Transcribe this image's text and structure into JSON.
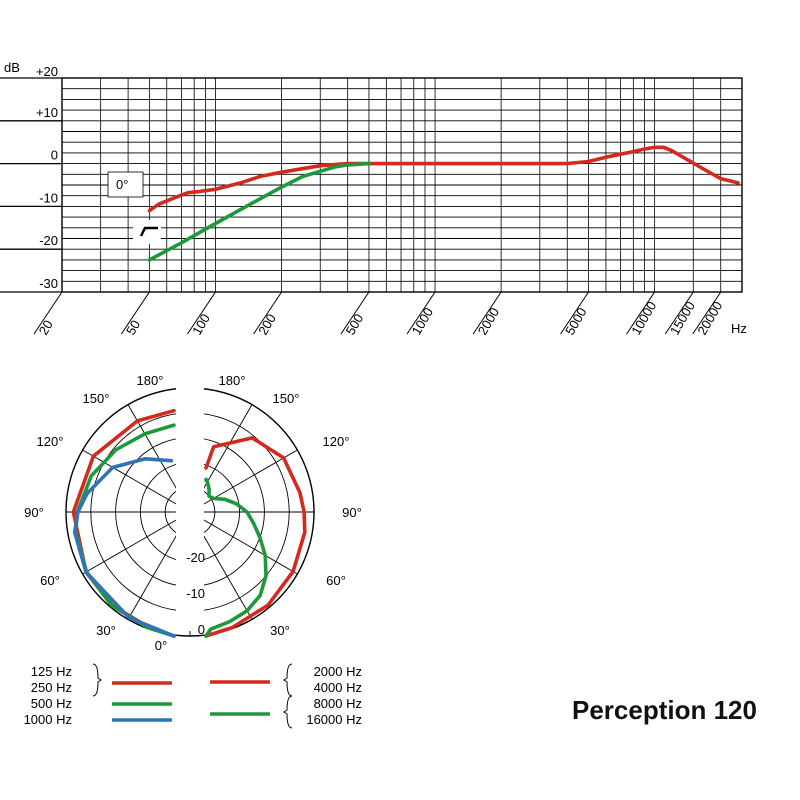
{
  "title": "Perception 120",
  "chart_data": [
    {
      "type": "line",
      "name": "frequency-response",
      "xscale": "log",
      "xlim": [
        20,
        25000
      ],
      "ylim": [
        -30,
        20
      ],
      "y_axis_unit": "dB",
      "x_axis_unit": "Hz",
      "y_ticks": [
        "+20",
        "+10",
        "0",
        "-10",
        "-20",
        "-30"
      ],
      "x_ticks": [
        {
          "value": 20,
          "label": "20"
        },
        {
          "value": 50,
          "label": "50"
        },
        {
          "value": 100,
          "label": "100"
        },
        {
          "value": 200,
          "label": "200"
        },
        {
          "value": 500,
          "label": "500"
        },
        {
          "value": 1000,
          "label": "1000"
        },
        {
          "value": 2000,
          "label": "2000"
        },
        {
          "value": 5000,
          "label": "5000"
        },
        {
          "value": 10000,
          "label": "10000"
        },
        {
          "value": 15000,
          "label": "15000"
        },
        {
          "value": 20000,
          "label": "20000"
        }
      ],
      "annotation": "0°",
      "grid": true,
      "series": [
        {
          "color": "#d42a1e",
          "x": [
            50,
            55,
            65,
            75,
            85,
            100,
            130,
            160,
            200,
            300,
            400,
            500,
            1000,
            2000,
            4000,
            5000,
            6000,
            7000,
            8000,
            9000,
            10000,
            11000,
            12000,
            14000,
            17000,
            20000,
            24000
          ],
          "y": [
            -11,
            -9.5,
            -8,
            -6.8,
            -6.5,
            -6,
            -4.5,
            -3,
            -2,
            -0.5,
            0,
            0,
            0,
            0,
            0,
            0.5,
            1.5,
            2.2,
            2.8,
            3.4,
            3.8,
            3.8,
            3,
            1,
            -1.5,
            -3.5,
            -4.5
          ]
        },
        {
          "color": "#1c9a3b",
          "x": [
            50,
            70,
            100,
            150,
            200,
            250,
            300,
            350,
            400,
            500
          ],
          "y": [
            -22.5,
            -18.5,
            -14,
            -9,
            -5.5,
            -3,
            -1.8,
            -0.8,
            -0.3,
            0
          ]
        }
      ]
    },
    {
      "type": "polar",
      "name": "polar-pattern",
      "angle_labels": [
        "0°",
        "30°",
        "60°",
        "90°",
        "120°",
        "150°",
        "180°",
        "30°",
        "60°",
        "90°",
        "120°",
        "150°",
        "180°"
      ],
      "radial_labels": [
        "-20",
        "-10",
        "0"
      ],
      "rlim": [
        -25,
        0
      ],
      "series": [
        {
          "side": "left",
          "color": "#d42a1e",
          "angle": [
            0,
            20,
            40,
            60,
            90,
            120,
            150,
            175
          ],
          "db": [
            0,
            -0.3,
            -0.5,
            -0.8,
            -1.5,
            -2.5,
            -3.8,
            -4.5
          ]
        },
        {
          "side": "left",
          "color": "#1c9a3b",
          "angle": [
            0,
            20,
            40,
            60,
            80,
            90,
            110,
            130,
            150,
            170
          ],
          "db": [
            0,
            -0.2,
            -0.4,
            -0.9,
            -1.6,
            -2.3,
            -3.8,
            -5.5,
            -6.8,
            -7.2
          ]
        },
        {
          "side": "left",
          "color": "#2f74b8",
          "angle": [
            0,
            30,
            60,
            80,
            90,
            100,
            120,
            140,
            160
          ],
          "db": [
            0,
            -0.4,
            -0.8,
            -1.4,
            -2.4,
            -3.9,
            -7,
            -11,
            -14
          ]
        },
        {
          "side": "right",
          "color": "#d42a1e",
          "angle": [
            0,
            20,
            40,
            60,
            80,
            90,
            100,
            120,
            140,
            160,
            170
          ],
          "db": [
            0,
            -0.2,
            -0.5,
            -1,
            -1.5,
            -2,
            -2.5,
            -3.2,
            -5.5,
            -11,
            -16
          ]
        },
        {
          "side": "right",
          "color": "#1c9a3b",
          "angle": [
            0,
            10,
            20,
            30,
            40,
            50,
            60,
            70,
            80,
            90,
            100,
            110,
            120,
            130,
            140,
            150,
            160,
            170
          ],
          "db": [
            0,
            -1,
            -1.5,
            -2,
            -3,
            -5,
            -7.5,
            -10,
            -12,
            -13.5,
            -15.5,
            -17.5,
            -19.5,
            -20,
            -19,
            -18,
            -18,
            -18.5
          ]
        }
      ]
    }
  ],
  "legend": {
    "left": {
      "groups": [
        {
          "labels": [
            "125 Hz",
            "250 Hz"
          ],
          "color": "#d42a1e"
        },
        {
          "labels": [
            "500 Hz"
          ],
          "color": "#1c9a3b"
        },
        {
          "labels": [
            "1000 Hz"
          ],
          "color": "#2f74b8"
        }
      ]
    },
    "right": {
      "groups": [
        {
          "labels": [
            "2000 Hz",
            "4000 Hz"
          ],
          "color": "#d42a1e"
        },
        {
          "labels": [
            "8000 Hz",
            "16000 Hz"
          ],
          "color": "#1c9a3b"
        }
      ]
    }
  }
}
